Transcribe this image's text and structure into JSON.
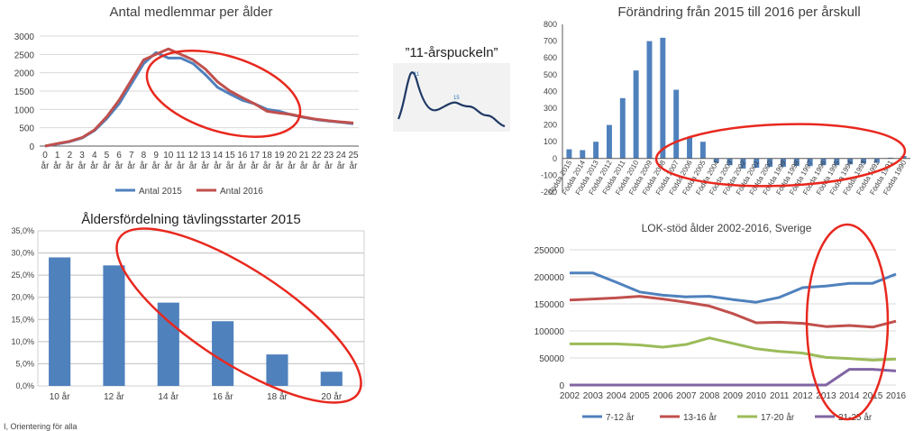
{
  "hump_label": "”11-årspuckeln”",
  "footer_text": "I, Orientering för alla",
  "colors": {
    "blue": "#4f81bd",
    "red": "#c0504d",
    "green": "#9bbb59",
    "purple": "#8064a2",
    "bar": "#4f81bd",
    "ellipse": "#e8281e",
    "grid": "#d9d9d9",
    "axis": "#595959"
  },
  "chart_data": [
    {
      "type": "line",
      "title": "Antal medlemmar per ålder",
      "x": [
        "0 år",
        "1 år",
        "2 år",
        "3 år",
        "4 år",
        "5 år",
        "6 år",
        "7 år",
        "8 år",
        "9 år",
        "10 år",
        "11 år",
        "12 år",
        "13 år",
        "14 år",
        "15 år",
        "16 år",
        "17 år",
        "18 år",
        "19 år",
        "20 år",
        "21 år",
        "22 år",
        "23 år",
        "24 år",
        "25 år"
      ],
      "x_top": [
        "0",
        "1",
        "2",
        "3",
        "4",
        "5",
        "6",
        "7",
        "8",
        "9",
        "10",
        "11",
        "12",
        "13",
        "14",
        "15",
        "16",
        "17",
        "18",
        "19",
        "20",
        "21",
        "22",
        "23",
        "24",
        "25"
      ],
      "x_bottom": "år",
      "ylim": [
        0,
        3000
      ],
      "yticks": [
        0,
        500,
        1000,
        1500,
        2000,
        2500,
        3000
      ],
      "series": [
        {
          "name": "Antal 2015",
          "values": [
            0,
            60,
            120,
            220,
            420,
            750,
            1150,
            1700,
            2250,
            2550,
            2400,
            2400,
            2250,
            1950,
            1600,
            1420,
            1250,
            1150,
            1000,
            950,
            850,
            780,
            720,
            680,
            650,
            610
          ]
        },
        {
          "name": "Antal 2016",
          "values": [
            0,
            70,
            130,
            230,
            440,
            800,
            1250,
            1800,
            2350,
            2500,
            2650,
            2500,
            2350,
            2100,
            1750,
            1500,
            1320,
            1150,
            950,
            900,
            860,
            790,
            730,
            690,
            660,
            630
          ]
        }
      ],
      "legend": "bottom"
    },
    {
      "type": "bar",
      "title": "Förändring från 2015 till 2016 per årskull",
      "categories": [
        "Födda 2015",
        "Födda 2014",
        "Födda 2013",
        "Födda 2012",
        "Födda 2011",
        "Födda 2010",
        "Födda 2009",
        "Födda 2008",
        "Födda 2007",
        "Födda 2006",
        "Födda 2005",
        "Födda 2004",
        "Födda 2003",
        "Födda 2002",
        "Födda 2001",
        "Födda 2000",
        "Födda 1999",
        "Födda 1998",
        "Födda 1997",
        "Födda 1996",
        "Födda 1995",
        "Födda 1994",
        "Födda 1993",
        "Födda 1992",
        "Födda 1991",
        "Födda 1990"
      ],
      "values": [
        55,
        50,
        100,
        200,
        360,
        525,
        700,
        720,
        410,
        130,
        100,
        -25,
        -40,
        -60,
        -55,
        -50,
        -50,
        -45,
        -45,
        -40,
        -40,
        -35,
        -30,
        -25,
        5,
        15
      ],
      "ylim": [
        -200,
        800
      ],
      "yticks": [
        -200,
        -100,
        0,
        100,
        200,
        300,
        400,
        500,
        600,
        700,
        800
      ]
    },
    {
      "type": "bar",
      "title": "Åldersfördelning tävlingsstarter 2015",
      "categories": [
        "10 år",
        "12 år",
        "14 år",
        "16 år",
        "18 år",
        "20 år"
      ],
      "values": [
        29.0,
        27.2,
        18.8,
        14.6,
        7.1,
        3.2
      ],
      "ylim": [
        0,
        35
      ],
      "yticks": [
        "0,0%",
        "5,0%",
        "10,0%",
        "15,0%",
        "20,0%",
        "25,0%",
        "30,0%",
        "35,0%"
      ]
    },
    {
      "type": "line",
      "title": "LOK-stöd ålder 2002-2016, Sverige",
      "x": [
        "2002",
        "2003",
        "2004",
        "2005",
        "2006",
        "2007",
        "2008",
        "2009",
        "2010",
        "2011",
        "2012",
        "2013",
        "2014",
        "2015",
        "2016"
      ],
      "ylim": [
        0,
        250000
      ],
      "yticks": [
        0,
        50000,
        100000,
        150000,
        200000,
        250000
      ],
      "series": [
        {
          "name": "7-12 år",
          "values": [
            207000,
            207000,
            190000,
            172000,
            166000,
            163000,
            164000,
            158000,
            153000,
            162000,
            180000,
            183000,
            188000,
            188000,
            205000
          ]
        },
        {
          "name": "13-16 år",
          "values": [
            157000,
            159000,
            161000,
            164000,
            159000,
            153000,
            146000,
            132000,
            115000,
            116000,
            114000,
            108000,
            110000,
            107000,
            118000
          ]
        },
        {
          "name": "17-20 år",
          "values": [
            76000,
            76000,
            76000,
            74000,
            70000,
            75000,
            87000,
            77000,
            67000,
            62000,
            59000,
            51000,
            49000,
            46000,
            48000
          ]
        },
        {
          "name": "21-25 år",
          "values": [
            0,
            0,
            0,
            0,
            0,
            0,
            0,
            0,
            0,
            0,
            0,
            0,
            29000,
            29000,
            26000
          ]
        }
      ],
      "legend": "bottom"
    }
  ]
}
